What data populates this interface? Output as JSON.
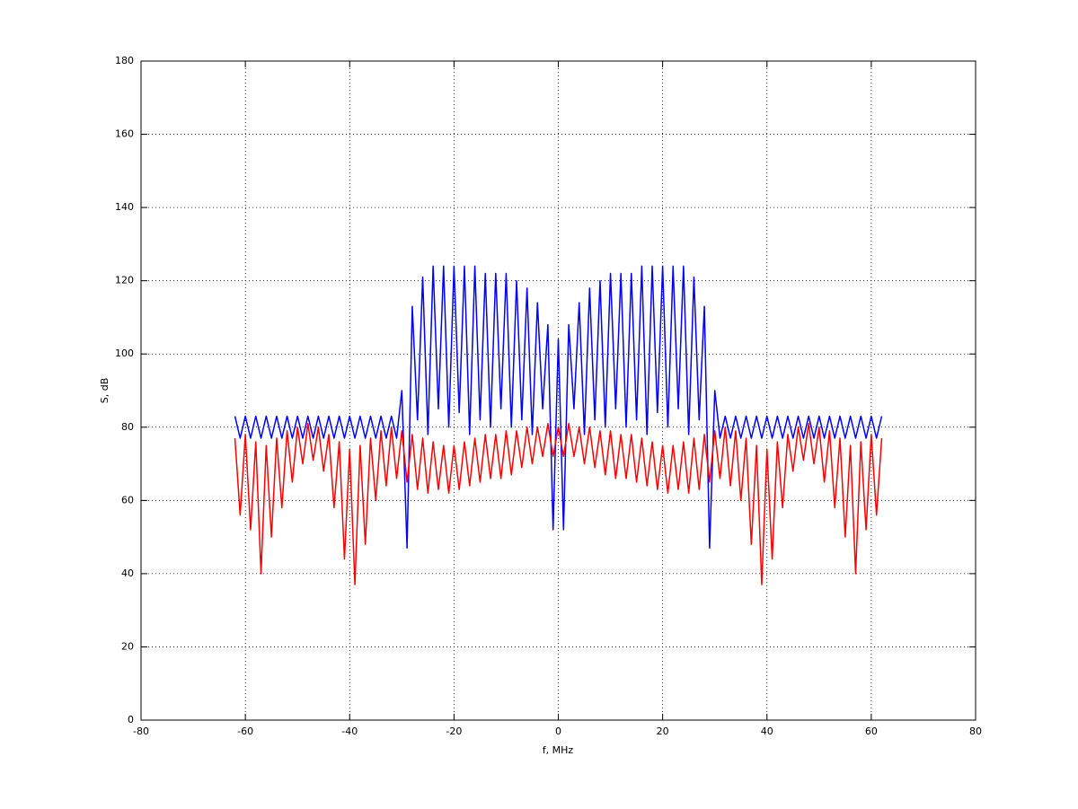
{
  "chart_data": {
    "type": "line",
    "xlabel": "f, MHz",
    "ylabel": "S, dB",
    "x": [
      -62,
      -61,
      -60,
      -59,
      -58,
      -57,
      -56,
      -55,
      -54,
      -53,
      -52,
      -51,
      -50,
      -49,
      -48,
      -47,
      -46,
      -45,
      -44,
      -43,
      -42,
      -41,
      -40,
      -39,
      -38,
      -37,
      -36,
      -35,
      -34,
      -33,
      -32,
      -31,
      -30,
      -29,
      -28,
      -27,
      -26,
      -25,
      -24,
      -23,
      -22,
      -21,
      -20,
      -19,
      -18,
      -17,
      -16,
      -15,
      -14,
      -13,
      -12,
      -11,
      -10,
      -9,
      -8,
      -7,
      -6,
      -5,
      -4,
      -3,
      -2,
      -1,
      0,
      1,
      2,
      3,
      4,
      5,
      6,
      7,
      8,
      9,
      10,
      11,
      12,
      13,
      14,
      15,
      16,
      17,
      18,
      19,
      20,
      21,
      22,
      23,
      24,
      25,
      26,
      27,
      28,
      29,
      30,
      31,
      32,
      33,
      34,
      35,
      36,
      37,
      38,
      39,
      40,
      41,
      42,
      43,
      44,
      45,
      46,
      47,
      48,
      49,
      50,
      51,
      52,
      53,
      54,
      55,
      56,
      57,
      58,
      59,
      60,
      61,
      62
    ],
    "series": [
      {
        "color": "#0000ff",
        "values": [
          83,
          77,
          83,
          77,
          83,
          77,
          83,
          77,
          83,
          77,
          83,
          77,
          83,
          77,
          83,
          77,
          83,
          77,
          83,
          77,
          83,
          77,
          83,
          77,
          83,
          77,
          83,
          77,
          83,
          77,
          83,
          77,
          90,
          47,
          113,
          82,
          121,
          78,
          124,
          85,
          124,
          80,
          124,
          84,
          124,
          78,
          124,
          82,
          122,
          80,
          122,
          85,
          122,
          80,
          120,
          82,
          118,
          78,
          114,
          85,
          108,
          52,
          104,
          52,
          108,
          85,
          114,
          78,
          118,
          82,
          120,
          80,
          122,
          85,
          122,
          80,
          122,
          82,
          124,
          78,
          124,
          84,
          124,
          80,
          124,
          85,
          124,
          78,
          121,
          82,
          113,
          47,
          90,
          77,
          83,
          77,
          83,
          77,
          83,
          77,
          83,
          77,
          83,
          77,
          83,
          77,
          83,
          77,
          83,
          77,
          83,
          77,
          83,
          77,
          83,
          77,
          83,
          77,
          83,
          77,
          83,
          77,
          83,
          77,
          83
        ]
      },
      {
        "color": "#ff0000",
        "values": [
          77,
          56,
          78,
          52,
          76,
          40,
          75,
          50,
          77,
          58,
          79,
          65,
          80,
          70,
          81,
          71,
          80,
          68,
          78,
          58,
          76,
          44,
          74,
          37,
          75,
          48,
          77,
          60,
          79,
          64,
          80,
          66,
          79,
          65,
          78,
          63,
          77,
          62,
          76,
          63,
          75,
          62,
          75,
          63,
          76,
          64,
          77,
          65,
          78,
          66,
          78,
          66,
          79,
          67,
          79,
          69,
          80,
          70,
          80,
          72,
          81,
          72,
          80,
          72,
          81,
          72,
          80,
          70,
          80,
          69,
          79,
          67,
          79,
          66,
          78,
          66,
          78,
          65,
          77,
          64,
          76,
          63,
          75,
          62,
          75,
          63,
          76,
          62,
          77,
          63,
          78,
          65,
          79,
          66,
          80,
          64,
          79,
          60,
          77,
          48,
          75,
          37,
          74,
          44,
          76,
          58,
          78,
          68,
          80,
          71,
          81,
          70,
          80,
          65,
          79,
          58,
          77,
          50,
          75,
          40,
          76,
          52,
          78,
          56,
          77
        ]
      }
    ],
    "xlim": [
      -80,
      80
    ],
    "xticks": [
      -80,
      -60,
      -40,
      -20,
      0,
      20,
      40,
      60,
      80
    ],
    "ylim": [
      0,
      180
    ],
    "yticks": [
      0,
      20,
      40,
      60,
      80,
      100,
      120,
      140,
      160,
      180
    ],
    "grid": true
  }
}
